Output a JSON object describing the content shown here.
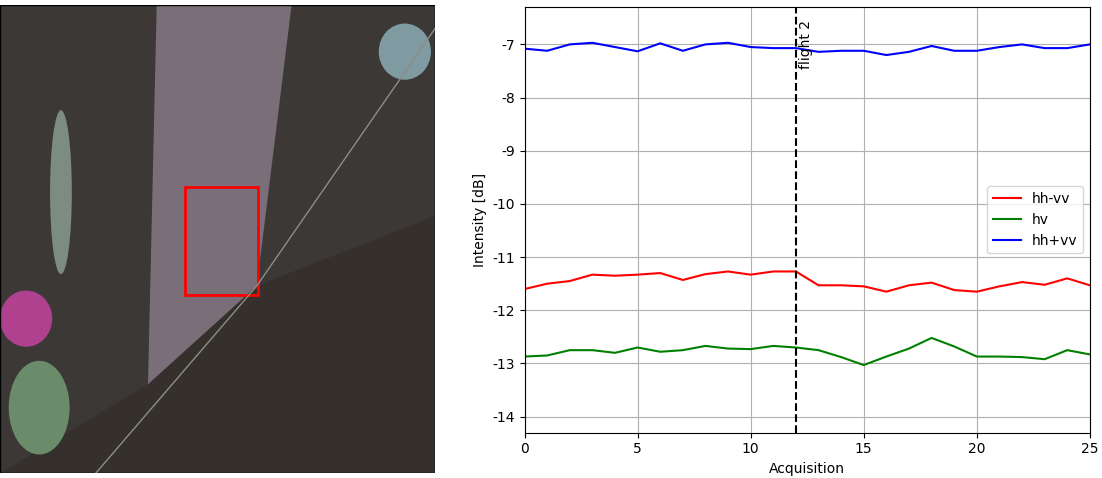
{
  "chart_data": {
    "type": "line",
    "x_label": "Acquisition",
    "y_label": "Intensity [dB]",
    "x": [
      0,
      1,
      2,
      3,
      4,
      5,
      6,
      7,
      8,
      9,
      10,
      11,
      12,
      13,
      14,
      15,
      16,
      17,
      18,
      19,
      20,
      21,
      22,
      23,
      24,
      25
    ],
    "series": [
      {
        "name": "hh-vv",
        "color": "#ff0000",
        "values": [
          -11.6,
          -11.5,
          -11.45,
          -11.33,
          -11.35,
          -11.33,
          -11.3,
          -11.43,
          -11.32,
          -11.27,
          -11.33,
          -11.27,
          -11.27,
          -11.53,
          -11.53,
          -11.55,
          -11.65,
          -11.53,
          -11.48,
          -11.62,
          -11.65,
          -11.55,
          -11.47,
          -11.52,
          -11.4,
          -11.53
        ]
      },
      {
        "name": "hv",
        "color": "#008000",
        "values": [
          -12.87,
          -12.85,
          -12.75,
          -12.75,
          -12.8,
          -12.7,
          -12.78,
          -12.75,
          -12.67,
          -12.72,
          -12.73,
          -12.67,
          -12.7,
          -12.75,
          -12.88,
          -13.03,
          -12.87,
          -12.72,
          -12.52,
          -12.68,
          -12.87,
          -12.87,
          -12.88,
          -12.92,
          -12.75,
          -12.83
        ]
      },
      {
        "name": "hh+vv",
        "color": "#0000ff",
        "values": [
          -7.08,
          -7.12,
          -7.0,
          -6.97,
          -7.05,
          -7.13,
          -6.98,
          -7.12,
          -7.0,
          -6.97,
          -7.05,
          -7.07,
          -7.07,
          -7.14,
          -7.12,
          -7.12,
          -7.2,
          -7.14,
          -7.03,
          -7.12,
          -7.12,
          -7.05,
          -7.0,
          -7.07,
          -7.07,
          -7.0
        ]
      }
    ],
    "annotations": [
      {
        "text": "flight 2",
        "x": 12,
        "line_style": "dashed",
        "color": "#000000"
      }
    ],
    "xlim": [
      0,
      25
    ],
    "xticks": [
      0,
      5,
      10,
      15,
      20,
      25
    ],
    "ylim": [
      -14.3,
      -6.3
    ],
    "yticks": [
      -14,
      -13,
      -12,
      -11,
      -10,
      -9,
      -8,
      -7
    ],
    "grid": true,
    "legend": "center right"
  }
}
